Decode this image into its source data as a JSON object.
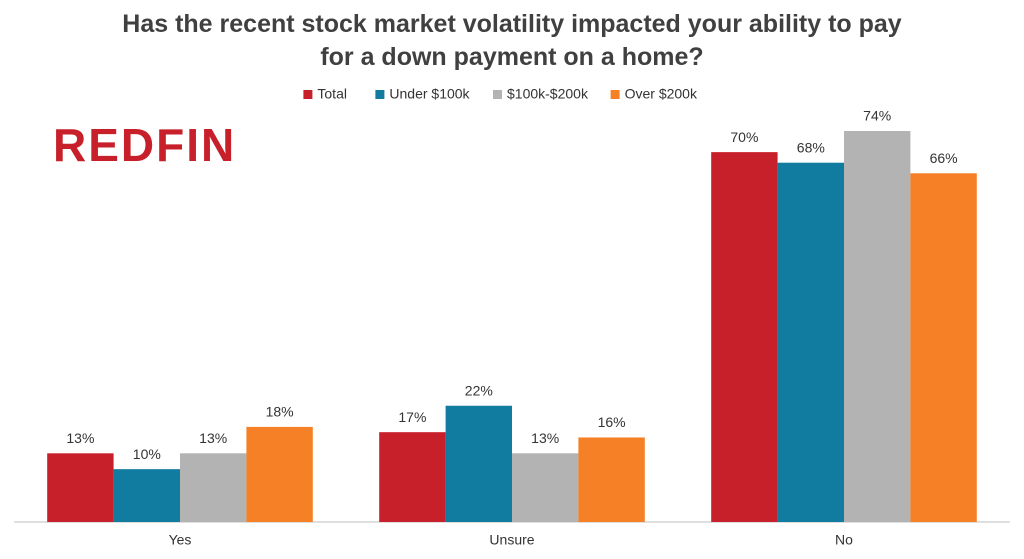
{
  "chart_data": {
    "type": "bar",
    "title": "Has the recent stock market volatility impacted your ability to pay for a down payment on a home?",
    "logo": "REDFIN",
    "categories": [
      "Yes",
      "Unsure",
      "No"
    ],
    "series": [
      {
        "name": "Total",
        "color": "#c8202a",
        "values": [
          13,
          17,
          70
        ],
        "value_labels": [
          "13%",
          "17%",
          "70%"
        ]
      },
      {
        "name": "Under $100k",
        "color": "#127ba0",
        "values": [
          10,
          22,
          68
        ],
        "value_labels": [
          "10%",
          "22%",
          "68%"
        ]
      },
      {
        "name": "$100k-$200k",
        "color": "#b3b3b3",
        "values": [
          13,
          13,
          74
        ],
        "value_labels": [
          "13%",
          "13%",
          "74%"
        ]
      },
      {
        "name": "Over $200k",
        "color": "#f58025",
        "values": [
          18,
          16,
          66
        ],
        "value_labels": [
          "18%",
          "16%",
          "66%"
        ]
      }
    ],
    "legend": "top"
  }
}
